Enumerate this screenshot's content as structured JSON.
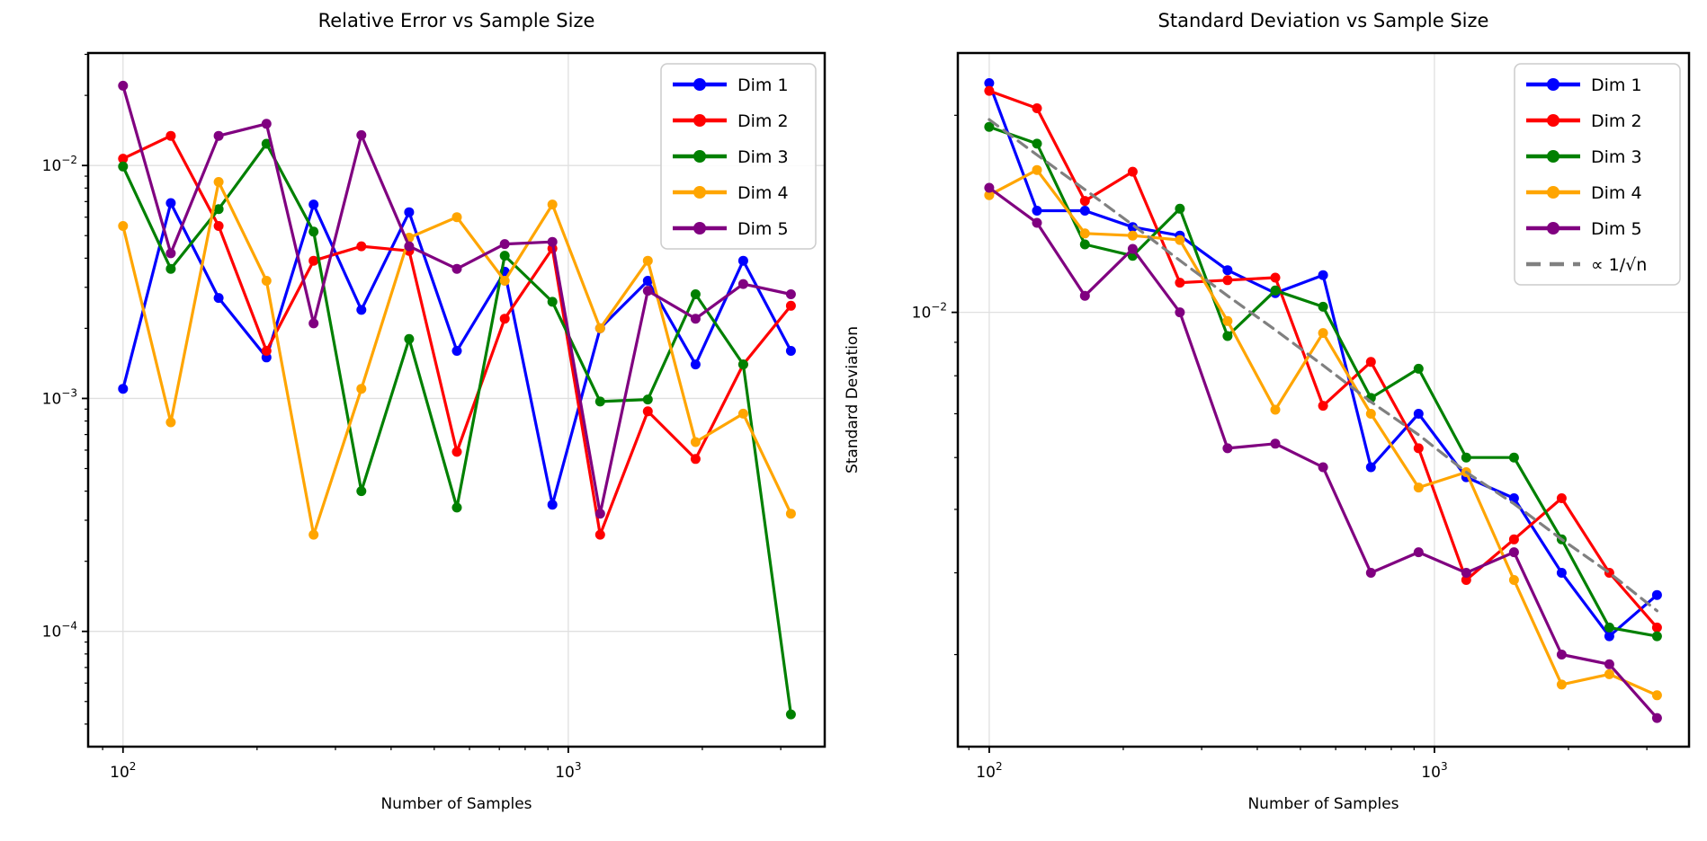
{
  "figure": {
    "background": "#ffffff"
  },
  "theme": {
    "spine_color": "#000000",
    "grid_color": "#e0e0e0",
    "tick_color": "#000000",
    "legend_border": "#cccccc",
    "legend_bg": "#ffffff"
  },
  "chart_data": [
    {
      "id": "relative-error",
      "type": "line",
      "title": "Relative Error vs Sample Size",
      "xlabel": "Number of Samples",
      "ylabel": "",
      "xscale": "log",
      "yscale": "log",
      "xlim": [
        83.5,
        3766
      ],
      "ylim": [
        3.2e-05,
        0.0304
      ],
      "x_ticks": [
        100,
        1000
      ],
      "y_ticks": [
        0.01,
        0.001,
        0.0001
      ],
      "grid": true,
      "legend_position": "upper right",
      "x": [
        100,
        128,
        164,
        210,
        268,
        343,
        439,
        562,
        720,
        921,
        1179,
        1509,
        1931,
        2471,
        3162
      ],
      "series": [
        {
          "name": "Dim 1",
          "color": "#0000ff",
          "style": "solid",
          "values": [
            0.0011,
            0.0069,
            0.0027,
            0.0015,
            0.0068,
            0.0024,
            0.0063,
            0.0016,
            0.0035,
            0.00035,
            0.002,
            0.0032,
            0.0014,
            0.0039,
            0.0016
          ]
        },
        {
          "name": "Dim 2",
          "color": "#ff0000",
          "style": "solid",
          "values": [
            0.0107,
            0.0134,
            0.0055,
            0.0016,
            0.0039,
            0.0045,
            0.0043,
            0.00059,
            0.0022,
            0.0044,
            0.00026,
            0.00088,
            0.00055,
            0.0014,
            0.0025
          ]
        },
        {
          "name": "Dim 3",
          "color": "#008000",
          "style": "solid",
          "values": [
            0.0099,
            0.0036,
            0.0065,
            0.0124,
            0.0052,
            0.0004,
            0.0018,
            0.00034,
            0.0041,
            0.0026,
            0.00097,
            0.00099,
            0.0028,
            0.0014,
            4.4e-05
          ]
        },
        {
          "name": "Dim 4",
          "color": "#ffa500",
          "style": "solid",
          "values": [
            0.0055,
            0.00079,
            0.0085,
            0.0032,
            0.00026,
            0.0011,
            0.0049,
            0.006,
            0.0032,
            0.0068,
            0.002,
            0.0039,
            0.00065,
            0.00086,
            0.00032
          ]
        },
        {
          "name": "Dim 5",
          "color": "#800080",
          "style": "solid",
          "values": [
            0.022,
            0.0042,
            0.0134,
            0.0151,
            0.0021,
            0.0135,
            0.0045,
            0.0036,
            0.0046,
            0.0047,
            0.00032,
            0.0029,
            0.0022,
            0.0031,
            0.0028
          ]
        }
      ]
    },
    {
      "id": "standard-deviation",
      "type": "line",
      "title": "Standard Deviation vs Sample Size",
      "xlabel": "Number of Samples",
      "ylabel": "Standard Deviation",
      "xscale": "log",
      "yscale": "log",
      "xlim": [
        85,
        3731
      ],
      "ylim": [
        0.00217,
        0.0249
      ],
      "x_ticks": [
        100,
        1000
      ],
      "y_ticks": [
        0.01
      ],
      "grid": true,
      "legend_position": "upper right",
      "x": [
        100,
        128,
        164,
        210,
        268,
        343,
        439,
        562,
        720,
        921,
        1179,
        1509,
        1931,
        2471,
        3162
      ],
      "series": [
        {
          "name": "Dim 1",
          "color": "#0000ff",
          "style": "solid",
          "values": [
            0.0224,
            0.0143,
            0.0143,
            0.0135,
            0.0131,
            0.0116,
            0.0107,
            0.0114,
            0.0058,
            0.007,
            0.0056,
            0.0052,
            0.004,
            0.0032,
            0.0037
          ]
        },
        {
          "name": "Dim 2",
          "color": "#ff0000",
          "style": "solid",
          "values": [
            0.0218,
            0.0205,
            0.0148,
            0.0164,
            0.0111,
            0.0112,
            0.0113,
            0.0072,
            0.0084,
            0.0062,
            0.0039,
            0.0045,
            0.0052,
            0.004,
            0.0033
          ]
        },
        {
          "name": "Dim 3",
          "color": "#008000",
          "style": "solid",
          "values": [
            0.0192,
            0.0181,
            0.0127,
            0.0122,
            0.0144,
            0.0092,
            0.0108,
            0.0102,
            0.0074,
            0.0082,
            0.006,
            0.006,
            0.0045,
            0.0033,
            0.0032
          ]
        },
        {
          "name": "Dim 4",
          "color": "#ffa500",
          "style": "solid",
          "values": [
            0.0151,
            0.0165,
            0.0132,
            0.0131,
            0.0129,
            0.0097,
            0.0071,
            0.0093,
            0.007,
            0.0054,
            0.0057,
            0.0039,
            0.0027,
            0.0028,
            0.0026
          ]
        },
        {
          "name": "Dim 5",
          "color": "#800080",
          "style": "solid",
          "values": [
            0.0155,
            0.0137,
            0.0106,
            0.0125,
            0.01,
            0.0062,
            0.0063,
            0.0058,
            0.004,
            0.0043,
            0.004,
            0.0043,
            0.003,
            0.0029,
            0.0024
          ]
        },
        {
          "name": "∝ 1/√n",
          "color": "#808080",
          "style": "dashed",
          "values": [
            0.0197,
            0.0174,
            0.0154,
            0.0136,
            0.012,
            0.0106,
            0.0094,
            0.0083,
            0.0073,
            0.0065,
            0.0057,
            0.0051,
            0.0045,
            0.004,
            0.0035
          ]
        }
      ]
    }
  ]
}
